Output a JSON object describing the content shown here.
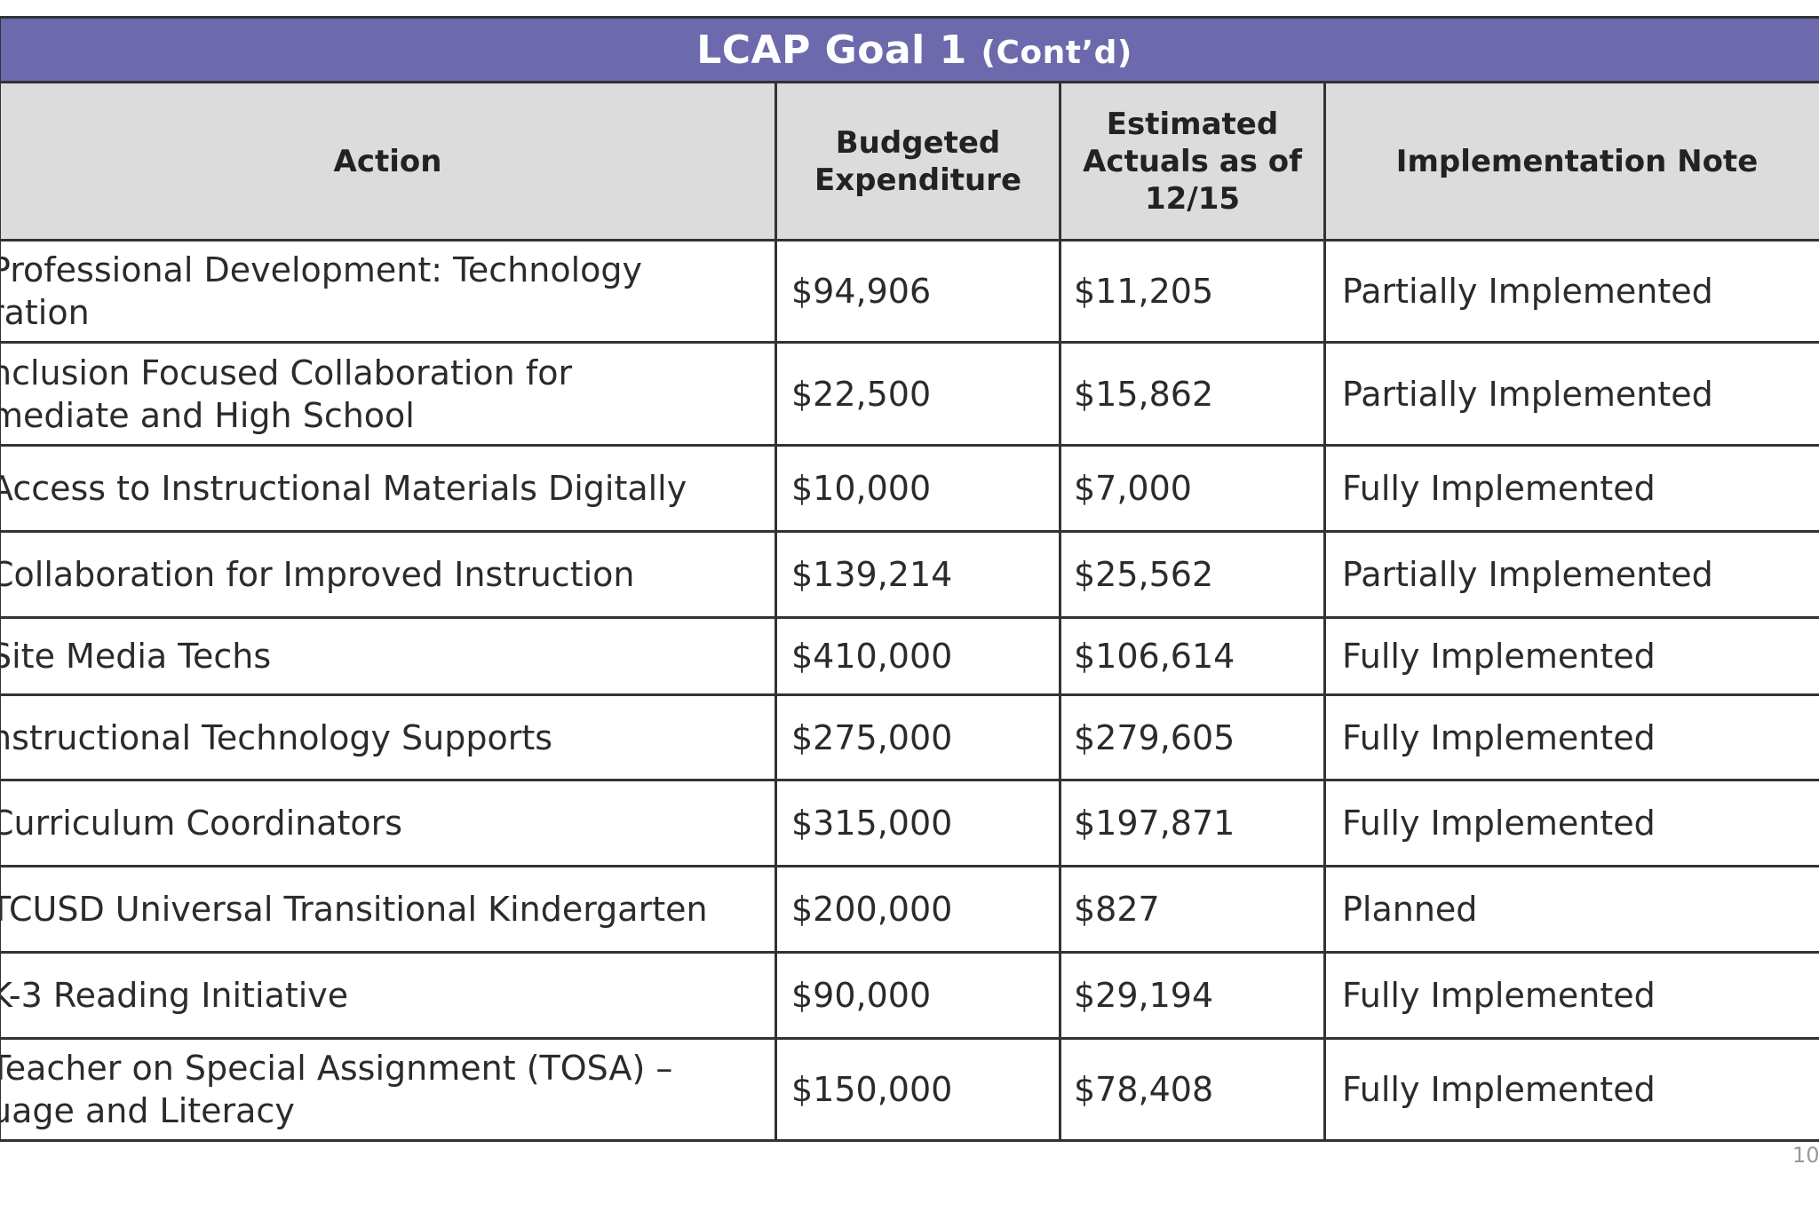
{
  "title": {
    "main": "LCAP Goal 1",
    "sub": "(Cont’d)"
  },
  "columns": {
    "action": "Action",
    "budgeted": "Budgeted\nExpenditure",
    "estimated": "Estimated\nActuals  as of\n12/15",
    "note": "Implementation Note"
  },
  "rows": [
    {
      "action": "Professional Development: Technology\nration",
      "budgeted": "$94,906",
      "estimated": "$11,205",
      "note": "Partially Implemented"
    },
    {
      "action": "nclusion Focused Collaboration for\nmediate and High School",
      "budgeted": "$22,500",
      "estimated": "$15,862",
      "note": "Partially Implemented"
    },
    {
      "action": "Access to Instructional Materials Digitally",
      "budgeted": "$10,000",
      "estimated": "$7,000",
      "note": "Fully Implemented"
    },
    {
      "action": "Collaboration for Improved Instruction",
      "budgeted": "$139,214",
      "estimated": "$25,562",
      "note": "Partially Implemented"
    },
    {
      "action": "Site Media Techs",
      "budgeted": "$410,000",
      "estimated": "$106,614",
      "note": "Fully Implemented"
    },
    {
      "action": "nstructional Technology Supports",
      "budgeted": "$275,000",
      "estimated": "$279,605",
      "note": "Fully Implemented"
    },
    {
      "action": "Curriculum Coordinators",
      "budgeted": "$315,000",
      "estimated": "$197,871",
      "note": "Fully Implemented"
    },
    {
      "action": "TCUSD Universal Transitional Kindergarten",
      "budgeted": "$200,000",
      "estimated": "$827",
      "note": "Planned"
    },
    {
      "action": "K-3 Reading Initiative",
      "budgeted": "$90,000",
      "estimated": "$29,194",
      "note": "Fully Implemented"
    },
    {
      "action": "Teacher on Special Assignment (TOSA) –\nuage and Literacy",
      "budgeted": "$150,000",
      "estimated": "$78,408",
      "note": "Fully Implemented"
    }
  ],
  "page_number": "10",
  "colors": {
    "title_bar": "#6c69ad",
    "header_bg": "#dcdcdc",
    "border": "#333333"
  }
}
